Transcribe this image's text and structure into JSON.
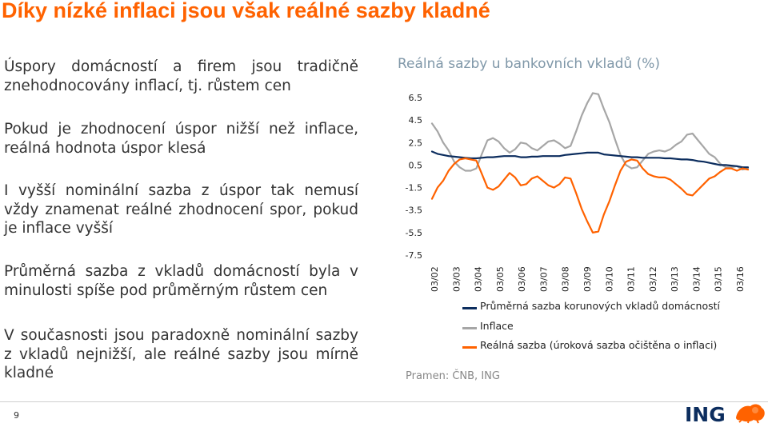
{
  "slide": {
    "title": "Díky nízké inflaci jsou však reálné sazby kladné",
    "page_number": "9",
    "paragraphs": [
      "Úspory domácností a firem jsou tradičně znehodnocovány inflací, tj. růstem cen",
      "Pokud je zhodnocení úspor nižší než inflace, reálná hodnota úspor klesá",
      "I vyšší nominální sazba z úspor tak nemusí vždy znamenat reálné zhodnocení spor, pokud je inflace vyšší",
      "Průměrná sazba z vkladů domácností byla v minulosti spíše pod průměrným růstem cen",
      "V současnosti jsou paradoxně nominální sazby z vkladů nejnižší, ale reálné sazby jsou mírně kladné"
    ],
    "source": "Pramen: ČNB, ING",
    "logo_text": "ING"
  },
  "colors": {
    "title": "#ff6200",
    "nominal": "#0c2d5e",
    "inflation": "#a6a6a6",
    "real": "#ff6200"
  },
  "chart_data": {
    "type": "line",
    "title": "Reálná sazby u bankovních vkladů (%)",
    "xlabel": "",
    "ylabel": "",
    "ylim": [
      -7.5,
      6.5
    ],
    "yticks": [
      "6.5",
      "4.5",
      "2.5",
      "0.5",
      "-1.5",
      "-3.5",
      "-5.5",
      "-7.5"
    ],
    "xticks": [
      "03/02",
      "03/03",
      "03/04",
      "03/05",
      "03/06",
      "03/07",
      "03/08",
      "03/09",
      "03/10",
      "03/11",
      "03/12",
      "03/13",
      "03/14",
      "03/15",
      "03/16"
    ],
    "x_start": "2002-01",
    "x_step": "quarter",
    "legend_position": "bottom",
    "grid": false,
    "series": [
      {
        "name": "Průměrná sazba korunových vkladů domácností",
        "color": "#0c2d5e",
        "values": [
          1.7,
          1.5,
          1.4,
          1.3,
          1.25,
          1.2,
          1.15,
          1.1,
          1.1,
          1.15,
          1.2,
          1.2,
          1.25,
          1.3,
          1.3,
          1.3,
          1.2,
          1.2,
          1.25,
          1.25,
          1.3,
          1.3,
          1.3,
          1.3,
          1.4,
          1.45,
          1.5,
          1.55,
          1.6,
          1.6,
          1.6,
          1.45,
          1.4,
          1.35,
          1.3,
          1.25,
          1.2,
          1.2,
          1.15,
          1.15,
          1.15,
          1.15,
          1.1,
          1.1,
          1.05,
          1.0,
          1.0,
          0.95,
          0.85,
          0.8,
          0.7,
          0.6,
          0.5,
          0.5,
          0.45,
          0.4,
          0.3,
          0.3
        ]
      },
      {
        "name": "Inflace",
        "color": "#a6a6a6",
        "values": [
          4.2,
          3.5,
          2.5,
          1.8,
          0.8,
          0.3,
          0.0,
          0.0,
          0.2,
          1.5,
          2.7,
          2.9,
          2.6,
          2.0,
          1.6,
          1.9,
          2.5,
          2.4,
          2.0,
          1.8,
          2.2,
          2.6,
          2.7,
          2.4,
          2.0,
          2.2,
          3.5,
          4.9,
          6.0,
          6.9,
          6.8,
          5.5,
          4.3,
          2.8,
          1.4,
          0.5,
          0.2,
          0.3,
          0.9,
          1.5,
          1.7,
          1.8,
          1.7,
          1.9,
          2.3,
          2.6,
          3.2,
          3.3,
          2.7,
          2.1,
          1.5,
          1.2,
          0.6,
          0.3,
          0.3,
          0.4,
          0.1,
          0.2
        ]
      },
      {
        "name": "Reálná sazba (úroková sazba očištěna o inflaci)",
        "color": "#ff6200",
        "values": [
          -2.5,
          -1.5,
          -0.9,
          0.0,
          0.6,
          1.0,
          1.1,
          1.0,
          0.9,
          -0.3,
          -1.5,
          -1.7,
          -1.4,
          -0.8,
          -0.2,
          -0.6,
          -1.3,
          -1.2,
          -0.7,
          -0.5,
          -0.9,
          -1.3,
          -1.5,
          -1.2,
          -0.6,
          -0.7,
          -2.0,
          -3.4,
          -4.5,
          -5.5,
          -5.4,
          -3.9,
          -2.7,
          -1.3,
          0.0,
          0.8,
          1.0,
          0.9,
          0.2,
          -0.3,
          -0.5,
          -0.6,
          -0.6,
          -0.8,
          -1.2,
          -1.6,
          -2.1,
          -2.2,
          -1.7,
          -1.2,
          -0.7,
          -0.5,
          -0.1,
          0.2,
          0.2,
          0.0,
          0.2,
          0.1
        ]
      }
    ]
  }
}
